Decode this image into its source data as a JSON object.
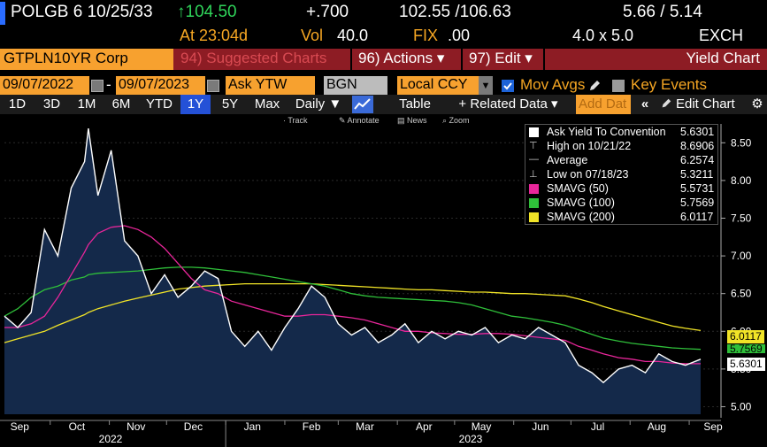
{
  "quote": {
    "ticker": "POLGB 6 10/25/33",
    "arrow_price": "↑104.50",
    "change": "+.700",
    "bid_ask": "102.55 /106.63",
    "yields": "5.66 / 5.14"
  },
  "status": {
    "at": "At 23:04d",
    "vol_label": "Vol",
    "vol_value": "40.0",
    "fix_label": "FIX",
    "fix_value": ".00",
    "size": "4.0 x 5.0",
    "exch": "EXCH"
  },
  "security_bar": {
    "security": "GTPLN10YR Corp",
    "suggested": "94) Suggested Charts",
    "actions": "96) Actions ▾",
    "edit": "97) Edit ▾",
    "title": "Yield Chart"
  },
  "filters": {
    "start_date": "09/07/2022",
    "dash": "-",
    "end_date": "09/07/2023",
    "field": "Ask YTW",
    "source": "BGN",
    "currency": "Local CCY",
    "mov_avgs": "Mov Avgs",
    "key_events": "Key Events"
  },
  "range_bar": {
    "buttons": [
      "1D",
      "3D",
      "1M",
      "6M",
      "YTD",
      "1Y",
      "5Y",
      "Max"
    ],
    "active": "1Y",
    "frequency": "Daily ▼",
    "table": "Table",
    "related": "+ Related Data ▾",
    "add_data": "Add Dat",
    "edit_chart": "Edit Chart"
  },
  "hints": {
    "track": "· Track",
    "annotate": "✎ Annotate",
    "news": "▤ News",
    "zoom": "⌕ Zoom"
  },
  "legend": {
    "rows": [
      {
        "label": "Ask Yield To Convention",
        "value": "5.6301",
        "color": "#ffffff"
      },
      {
        "label": "High on 10/21/22",
        "value": "8.6906",
        "color": "#cccccc"
      },
      {
        "label": "Average",
        "value": "6.2574",
        "color": "#cccccc"
      },
      {
        "label": "Low on 07/18/23",
        "value": "5.3211",
        "color": "#cccccc"
      },
      {
        "label": "SMAVG (50)",
        "value": "5.5731",
        "color": "#e8269a"
      },
      {
        "label": "SMAVG (100)",
        "value": "5.7569",
        "color": "#2fbf3a"
      },
      {
        "label": "SMAVG (200)",
        "value": "6.0117",
        "color": "#f1e427"
      }
    ]
  },
  "tags": {
    "sma200": "6.0117",
    "sma100": "5.7569",
    "price": "5.6301"
  },
  "colors": {
    "area_fill": "#14294a",
    "price_line": "#ffffff",
    "sma50": "#e8269a",
    "sma100": "#2fbf3a",
    "sma200": "#f1e427",
    "orange": "#f7a12f",
    "bar_red": "#8d1c24"
  },
  "chart_data": {
    "type": "line",
    "title": "",
    "xlabel": "",
    "ylabel": "",
    "ylim": [
      4.9,
      8.75
    ],
    "y_ticks": [
      "5.00",
      "5.50",
      "6.00",
      "6.50",
      "7.00",
      "7.50",
      "8.00",
      "8.50"
    ],
    "x_ticks": [
      "Sep",
      "Oct",
      "Nov",
      "Dec",
      "Jan",
      "Feb",
      "Mar",
      "Apr",
      "May",
      "Jun",
      "Jul",
      "Aug",
      "Sep"
    ],
    "year_labels": [
      "2022",
      "2023"
    ],
    "x": [
      "2022-09-07",
      "2022-09-14",
      "2022-09-21",
      "2022-09-28",
      "2022-10-05",
      "2022-10-12",
      "2022-10-19",
      "2022-10-21",
      "2022-10-26",
      "2022-11-02",
      "2022-11-09",
      "2022-11-16",
      "2022-11-23",
      "2022-11-30",
      "2022-12-07",
      "2022-12-14",
      "2022-12-21",
      "2022-12-28",
      "2023-01-04",
      "2023-01-11",
      "2023-01-18",
      "2023-01-25",
      "2023-02-01",
      "2023-02-08",
      "2023-02-15",
      "2023-02-22",
      "2023-03-01",
      "2023-03-08",
      "2023-03-15",
      "2023-03-22",
      "2023-03-29",
      "2023-04-05",
      "2023-04-12",
      "2023-04-19",
      "2023-04-26",
      "2023-05-03",
      "2023-05-10",
      "2023-05-17",
      "2023-05-24",
      "2023-05-31",
      "2023-06-07",
      "2023-06-14",
      "2023-06-21",
      "2023-06-28",
      "2023-07-05",
      "2023-07-12",
      "2023-07-18",
      "2023-07-26",
      "2023-08-02",
      "2023-08-09",
      "2023-08-16",
      "2023-08-23",
      "2023-08-30",
      "2023-09-07"
    ],
    "series": [
      {
        "name": "Ask Yield To Convention",
        "values": [
          6.2,
          6.05,
          6.25,
          7.35,
          7.0,
          7.9,
          8.25,
          8.69,
          7.8,
          8.4,
          7.2,
          7.0,
          6.5,
          6.75,
          6.45,
          6.6,
          6.8,
          6.7,
          6.0,
          5.8,
          6.0,
          5.75,
          6.05,
          6.3,
          6.6,
          6.45,
          6.1,
          5.95,
          6.05,
          5.85,
          5.95,
          6.1,
          5.85,
          6.0,
          5.9,
          6.0,
          5.95,
          6.05,
          5.85,
          5.95,
          5.9,
          6.05,
          5.95,
          5.85,
          5.55,
          5.45,
          5.32,
          5.5,
          5.55,
          5.45,
          5.7,
          5.6,
          5.55,
          5.63
        ]
      },
      {
        "name": "SMAVG (50)",
        "values": [
          6.05,
          6.05,
          6.1,
          6.2,
          6.45,
          6.75,
          7.05,
          7.15,
          7.3,
          7.38,
          7.4,
          7.35,
          7.25,
          7.1,
          6.9,
          6.7,
          6.55,
          6.5,
          6.4,
          6.35,
          6.3,
          6.25,
          6.2,
          6.2,
          6.22,
          6.22,
          6.2,
          6.18,
          6.15,
          6.1,
          6.05,
          6.0,
          6.0,
          5.98,
          5.97,
          5.96,
          5.96,
          5.97,
          5.97,
          5.96,
          5.94,
          5.92,
          5.9,
          5.88,
          5.8,
          5.75,
          5.7,
          5.65,
          5.63,
          5.6,
          5.6,
          5.58,
          5.57,
          5.57
        ]
      },
      {
        "name": "SMAVG (100)",
        "values": [
          6.2,
          6.3,
          6.45,
          6.55,
          6.6,
          6.68,
          6.72,
          6.75,
          6.77,
          6.78,
          6.79,
          6.8,
          6.82,
          6.84,
          6.85,
          6.85,
          6.84,
          6.82,
          6.8,
          6.78,
          6.75,
          6.72,
          6.69,
          6.66,
          6.63,
          6.6,
          6.55,
          6.5,
          6.47,
          6.45,
          6.44,
          6.43,
          6.42,
          6.41,
          6.4,
          6.38,
          6.35,
          6.3,
          6.25,
          6.2,
          6.18,
          6.15,
          6.12,
          6.08,
          6.02,
          5.96,
          5.91,
          5.87,
          5.84,
          5.82,
          5.8,
          5.78,
          5.77,
          5.76
        ]
      },
      {
        "name": "SMAVG (200)",
        "values": [
          5.85,
          5.9,
          5.95,
          6.0,
          6.08,
          6.15,
          6.22,
          6.25,
          6.3,
          6.35,
          6.4,
          6.44,
          6.48,
          6.52,
          6.56,
          6.58,
          6.6,
          6.61,
          6.62,
          6.63,
          6.63,
          6.63,
          6.63,
          6.63,
          6.63,
          6.62,
          6.61,
          6.6,
          6.59,
          6.58,
          6.57,
          6.56,
          6.55,
          6.55,
          6.54,
          6.53,
          6.52,
          6.52,
          6.51,
          6.5,
          6.5,
          6.49,
          6.48,
          6.47,
          6.43,
          6.38,
          6.33,
          6.27,
          6.22,
          6.17,
          6.12,
          6.07,
          6.04,
          6.01
        ]
      }
    ]
  }
}
